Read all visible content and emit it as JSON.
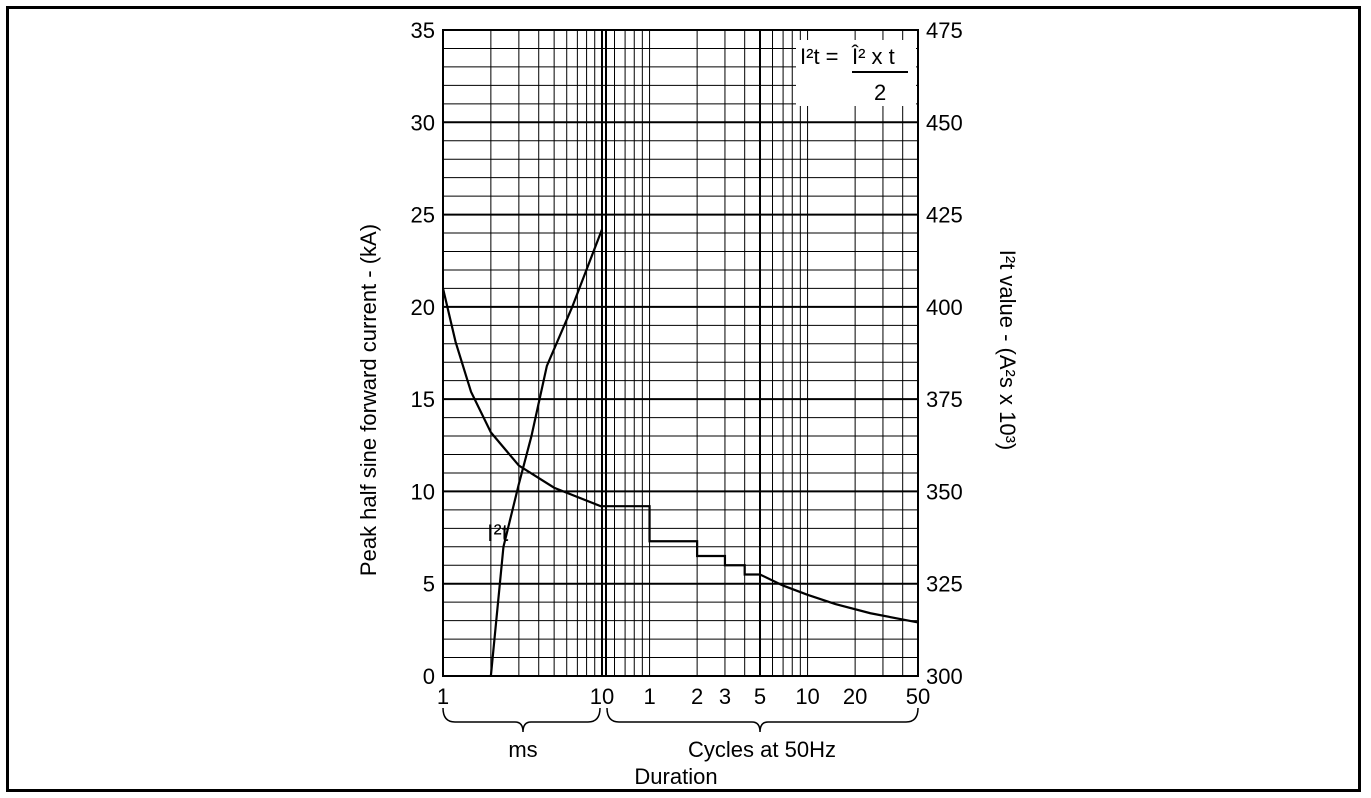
{
  "chart_data": {
    "type": "line",
    "y_left": {
      "label": "Peak half sine forward current - (kA)",
      "range": [
        0,
        35
      ],
      "ticks": [
        0,
        5,
        10,
        15,
        20,
        25,
        30,
        35
      ],
      "tick_labels": [
        "0",
        "5",
        "10",
        "15",
        "20",
        "25",
        "30",
        "35"
      ]
    },
    "y_right": {
      "label": "I²t value - (A²s x 10³)",
      "range": [
        300,
        475
      ],
      "ticks": [
        300,
        325,
        350,
        375,
        400,
        425,
        450,
        475
      ],
      "tick_labels": [
        "300",
        "325",
        "350",
        "375",
        "400",
        "425",
        "450",
        "475"
      ]
    },
    "x_axis": {
      "label": "Duration",
      "scale": "log",
      "segments": [
        {
          "label": "ms",
          "unit": "ms",
          "range": [
            1,
            10
          ],
          "ticks": [
            1,
            10
          ],
          "tick_labels": [
            "1",
            "10"
          ]
        },
        {
          "label": "Cycles at 50Hz",
          "unit": "cycles",
          "range": [
            0.5,
            50
          ],
          "ticks": [
            1,
            2,
            3,
            5,
            10,
            20,
            50
          ],
          "tick_labels": [
            "1",
            "2",
            "3",
            "5",
            "10",
            "20",
            "50"
          ]
        }
      ]
    },
    "grid": true,
    "formula": {
      "lhs": "I²t = ",
      "numerator": "Î² x t",
      "denominator": "2"
    },
    "series": [
      {
        "name": "",
        "axis": "left",
        "points": [
          {
            "seg": 0,
            "x": 1,
            "y": 21
          },
          {
            "seg": 0,
            "x": 1.2,
            "y": 18.1
          },
          {
            "seg": 0,
            "x": 1.5,
            "y": 15.4
          },
          {
            "seg": 0,
            "x": 2,
            "y": 13.2
          },
          {
            "seg": 0,
            "x": 3,
            "y": 11.4
          },
          {
            "seg": 0,
            "x": 5,
            "y": 10.2
          },
          {
            "seg": 0,
            "x": 9.8,
            "y": 9.2
          },
          {
            "seg": 1,
            "x": 1,
            "y": 9.2
          },
          {
            "seg": 1,
            "x": 1,
            "y": 7.3
          },
          {
            "seg": 1,
            "x": 2,
            "y": 7.3
          },
          {
            "seg": 1,
            "x": 2,
            "y": 6.5
          },
          {
            "seg": 1,
            "x": 3,
            "y": 6.5
          },
          {
            "seg": 1,
            "x": 3,
            "y": 6.0
          },
          {
            "seg": 1,
            "x": 4,
            "y": 6.0
          },
          {
            "seg": 1,
            "x": 4,
            "y": 5.5
          },
          {
            "seg": 1,
            "x": 5,
            "y": 5.5
          },
          {
            "seg": 1,
            "x": 7,
            "y": 4.9
          },
          {
            "seg": 1,
            "x": 10,
            "y": 4.4
          },
          {
            "seg": 1,
            "x": 15,
            "y": 3.9
          },
          {
            "seg": 1,
            "x": 25,
            "y": 3.4
          },
          {
            "seg": 1,
            "x": 50,
            "y": 2.9
          }
        ]
      },
      {
        "name": "I²t",
        "axis": "right",
        "points": [
          {
            "x": 2.0,
            "y": 300
          },
          {
            "x": 2.4,
            "y": 335
          },
          {
            "x": 3.0,
            "y": 352
          },
          {
            "x": 3.6,
            "y": 365
          },
          {
            "x": 4.5,
            "y": 384
          },
          {
            "x": 6.5,
            "y": 400
          },
          {
            "x": 10,
            "y": 421
          }
        ]
      }
    ]
  }
}
